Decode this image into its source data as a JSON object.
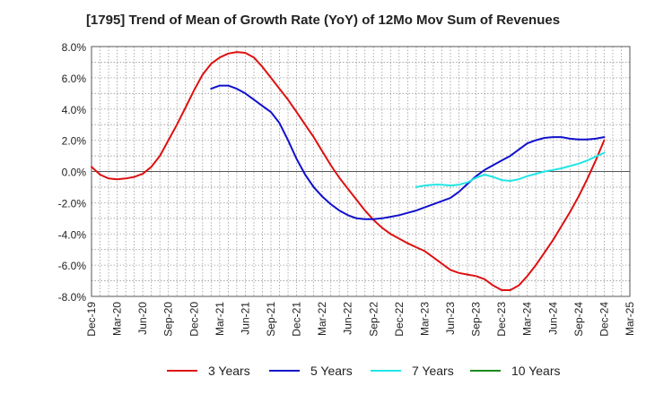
{
  "chart_data": {
    "type": "line",
    "title": "[1795]  Trend of Mean of Growth Rate (YoY) of 12Mo Mov Sum of Revenues",
    "xlabel": "",
    "ylabel": "",
    "ylim": [
      -8.0,
      8.0
    ],
    "yticks": [
      "8.0%",
      "6.0%",
      "4.0%",
      "2.0%",
      "0.0%",
      "-2.0%",
      "-4.0%",
      "-6.0%",
      "-8.0%"
    ],
    "ytick_values": [
      8,
      6,
      4,
      2,
      0,
      -2,
      -4,
      -6,
      -8
    ],
    "xticks": [
      "Dec-19",
      "Mar-20",
      "Jun-20",
      "Sep-20",
      "Dec-20",
      "Mar-21",
      "Jun-21",
      "Sep-21",
      "Dec-21",
      "Mar-22",
      "Jun-22",
      "Sep-22",
      "Dec-22",
      "Mar-23",
      "Jun-23",
      "Sep-23",
      "Dec-23",
      "Mar-24",
      "Jun-24",
      "Sep-24",
      "Dec-24",
      "Mar-25"
    ],
    "x_unit": "months since Dec-19",
    "xlim": [
      0,
      63
    ],
    "grid": true,
    "legend_position": "bottom",
    "series": [
      {
        "name": "3 Years",
        "color": "#dd1111",
        "x": [
          0,
          1,
          2,
          3,
          4,
          5,
          6,
          7,
          8,
          9,
          10,
          11,
          12,
          13,
          14,
          15,
          16,
          17,
          18,
          19,
          20,
          21,
          22,
          23,
          24,
          25,
          26,
          27,
          28,
          29,
          30,
          31,
          32,
          33,
          34,
          35,
          36,
          37,
          38,
          39,
          40,
          41,
          42,
          43,
          44,
          45,
          46,
          47,
          48,
          49,
          50,
          51,
          52,
          53,
          54,
          55,
          56,
          57,
          58,
          59,
          60
        ],
        "values": [
          0.3,
          -0.2,
          -0.45,
          -0.5,
          -0.45,
          -0.35,
          -0.15,
          0.3,
          1.0,
          2.0,
          3.0,
          4.1,
          5.2,
          6.2,
          6.9,
          7.3,
          7.55,
          7.65,
          7.6,
          7.3,
          6.7,
          6.0,
          5.3,
          4.6,
          3.8,
          3.0,
          2.2,
          1.3,
          0.4,
          -0.4,
          -1.1,
          -1.8,
          -2.5,
          -3.1,
          -3.6,
          -4.0,
          -4.3,
          -4.6,
          -4.85,
          -5.1,
          -5.5,
          -5.9,
          -6.3,
          -6.5,
          -6.6,
          -6.7,
          -6.9,
          -7.3,
          -7.6,
          -7.6,
          -7.3,
          -6.7,
          -6.0,
          -5.2,
          -4.4,
          -3.5,
          -2.6,
          -1.6,
          -0.5,
          0.7,
          2.0
        ]
      },
      {
        "name": "5 Years",
        "color": "#1111cc",
        "x": [
          14,
          15,
          16,
          17,
          18,
          19,
          20,
          21,
          22,
          23,
          24,
          25,
          26,
          27,
          28,
          29,
          30,
          31,
          32,
          33,
          34,
          35,
          36,
          37,
          38,
          39,
          40,
          41,
          42,
          43,
          44,
          45,
          46,
          47,
          48,
          49,
          50,
          51,
          52,
          53,
          54,
          55,
          56,
          57,
          58,
          59,
          60
        ],
        "values": [
          5.3,
          5.5,
          5.5,
          5.3,
          5.0,
          4.6,
          4.2,
          3.8,
          3.1,
          2.0,
          0.8,
          -0.2,
          -1.0,
          -1.6,
          -2.1,
          -2.5,
          -2.8,
          -3.0,
          -3.05,
          -3.05,
          -3.0,
          -2.9,
          -2.8,
          -2.65,
          -2.5,
          -2.3,
          -2.1,
          -1.9,
          -1.7,
          -1.3,
          -0.8,
          -0.3,
          0.1,
          0.4,
          0.7,
          1.0,
          1.4,
          1.8,
          2.0,
          2.15,
          2.2,
          2.2,
          2.1,
          2.05,
          2.05,
          2.1,
          2.2
        ]
      },
      {
        "name": "7 Years",
        "color": "#22e5e5",
        "x": [
          38,
          39,
          40,
          41,
          42,
          43,
          44,
          45,
          46,
          47,
          48,
          49,
          50,
          51,
          52,
          53,
          54,
          55,
          56,
          57,
          58,
          59,
          60
        ],
        "values": [
          -1.0,
          -0.9,
          -0.85,
          -0.85,
          -0.9,
          -0.85,
          -0.7,
          -0.4,
          -0.2,
          -0.35,
          -0.55,
          -0.6,
          -0.5,
          -0.3,
          -0.15,
          0.0,
          0.1,
          0.2,
          0.35,
          0.5,
          0.7,
          0.95,
          1.2
        ]
      },
      {
        "name": "10 Years",
        "color": "#1a8a1a",
        "x": [],
        "values": []
      }
    ]
  }
}
